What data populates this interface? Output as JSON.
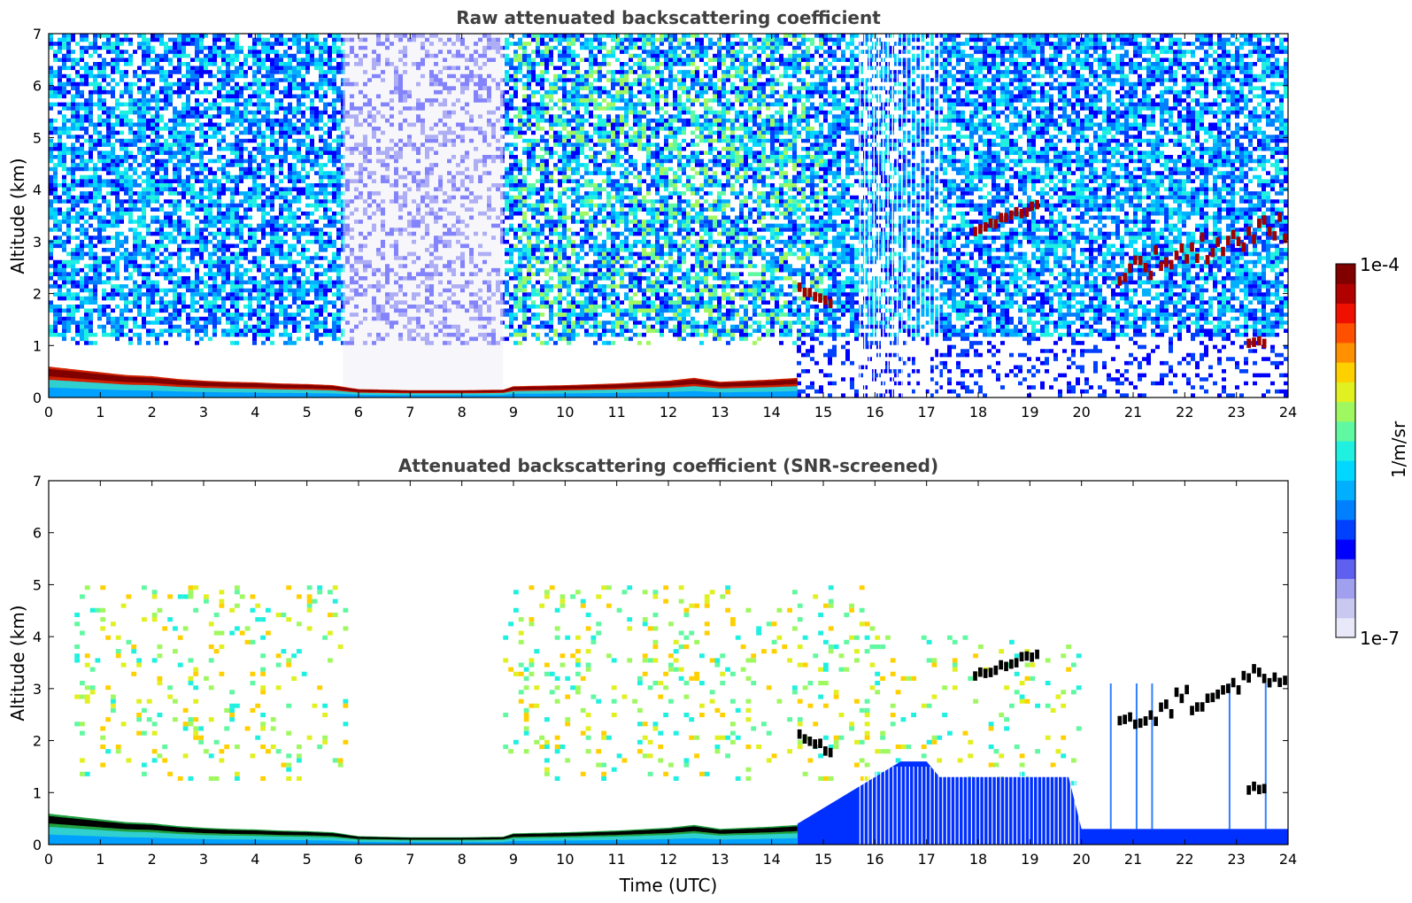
{
  "chart_data": [
    {
      "type": "heatmap",
      "title": "Raw attenuated backscattering coefficient",
      "xlabel": "",
      "ylabel": "Altitude (km)",
      "xlim": [
        0,
        24
      ],
      "ylim": [
        0,
        7
      ],
      "xticks": [
        "0",
        "1",
        "2",
        "3",
        "4",
        "5",
        "6",
        "7",
        "8",
        "9",
        "10",
        "11",
        "12",
        "13",
        "14",
        "15",
        "16",
        "17",
        "18",
        "19",
        "20",
        "21",
        "22",
        "23",
        "24"
      ],
      "yticks": [
        "0",
        "1",
        "2",
        "3",
        "4",
        "5",
        "6",
        "7"
      ],
      "colormap": "jet (log scale)",
      "features": {
        "boundary_layer_top_km": [
          [
            0,
            0.55
          ],
          [
            0.5,
            0.5
          ],
          [
            1,
            0.45
          ],
          [
            1.5,
            0.4
          ],
          [
            2,
            0.38
          ],
          [
            2.5,
            0.33
          ],
          [
            3,
            0.3
          ],
          [
            3.5,
            0.28
          ],
          [
            4,
            0.27
          ],
          [
            4.5,
            0.25
          ],
          [
            5,
            0.24
          ],
          [
            5.5,
            0.22
          ],
          [
            6,
            0.15
          ],
          [
            7,
            0.13
          ],
          [
            8,
            0.13
          ],
          [
            8.8,
            0.14
          ],
          [
            9,
            0.2
          ],
          [
            10,
            0.22
          ],
          [
            11,
            0.25
          ],
          [
            12,
            0.3
          ],
          [
            12.5,
            0.35
          ],
          [
            13,
            0.28
          ],
          [
            14,
            0.32
          ],
          [
            14.5,
            0.35
          ]
        ],
        "clouds": [
          {
            "x_start": 14.5,
            "x_end": 15.2,
            "alt_start_km": 2.1,
            "alt_end_km": 1.7
          },
          {
            "x_start": 17.9,
            "x_end": 19.2,
            "alt_start_km": 3.2,
            "alt_end_km": 3.7
          },
          {
            "x_start": 20.7,
            "x_end": 24,
            "alt_start_km": 2.4,
            "alt_end_km": 3.3
          },
          {
            "x_start": 23.2,
            "x_end": 23.6,
            "alt_start_km": 1.05,
            "alt_end_km": 1.05
          }
        ],
        "low_snr_gap": {
          "x_start": 5.7,
          "x_end": 8.8
        }
      }
    },
    {
      "type": "heatmap",
      "title": "Attenuated backscattering coefficient (SNR-screened)",
      "xlabel": "Time (UTC)",
      "ylabel": "Altitude (km)",
      "xlim": [
        0,
        24
      ],
      "ylim": [
        0,
        7
      ],
      "xticks": [
        "0",
        "1",
        "2",
        "3",
        "4",
        "5",
        "6",
        "7",
        "8",
        "9",
        "10",
        "11",
        "12",
        "13",
        "14",
        "15",
        "16",
        "17",
        "18",
        "19",
        "20",
        "21",
        "22",
        "23",
        "24"
      ],
      "yticks": [
        "0",
        "1",
        "2",
        "3",
        "4",
        "5",
        "6",
        "7"
      ],
      "colormap": "jet (log scale), saturated values shown black",
      "features": {
        "boundary_layer_top_km": [
          [
            0,
            0.55
          ],
          [
            0.5,
            0.5
          ],
          [
            1,
            0.45
          ],
          [
            1.5,
            0.4
          ],
          [
            2,
            0.38
          ],
          [
            2.5,
            0.33
          ],
          [
            3,
            0.3
          ],
          [
            3.5,
            0.28
          ],
          [
            4,
            0.27
          ],
          [
            4.5,
            0.25
          ],
          [
            5,
            0.24
          ],
          [
            5.5,
            0.22
          ],
          [
            6,
            0.15
          ],
          [
            7,
            0.13
          ],
          [
            8,
            0.13
          ],
          [
            8.8,
            0.14
          ],
          [
            9,
            0.2
          ],
          [
            10,
            0.22
          ],
          [
            11,
            0.25
          ],
          [
            12,
            0.3
          ],
          [
            12.5,
            0.35
          ],
          [
            13,
            0.28
          ],
          [
            14,
            0.32
          ],
          [
            14.5,
            0.35
          ]
        ],
        "clouds": [
          {
            "x_start": 14.5,
            "x_end": 15.2,
            "alt_start_km": 2.1,
            "alt_end_km": 1.7
          },
          {
            "x_start": 17.9,
            "x_end": 19.2,
            "alt_start_km": 3.2,
            "alt_end_km": 3.7
          },
          {
            "x_start": 20.7,
            "x_end": 24,
            "alt_start_km": 2.4,
            "alt_end_km": 3.3
          },
          {
            "x_start": 23.2,
            "x_end": 23.6,
            "alt_start_km": 1.05,
            "alt_end_km": 1.05
          }
        ]
      }
    }
  ],
  "colorbar": {
    "label": "1/m/sr",
    "max_label": "1e-4",
    "min_label": "1e-7",
    "colors": [
      "#e8e8f8",
      "#c8c8f0",
      "#a0a0ee",
      "#6060f0",
      "#0000ff",
      "#0040ff",
      "#0080ff",
      "#00b0ff",
      "#00d8ff",
      "#20f0e0",
      "#60f8a0",
      "#a0f860",
      "#e0f020",
      "#ffd000",
      "#ff9000",
      "#ff5000",
      "#f01000",
      "#b00000",
      "#800000"
    ]
  }
}
